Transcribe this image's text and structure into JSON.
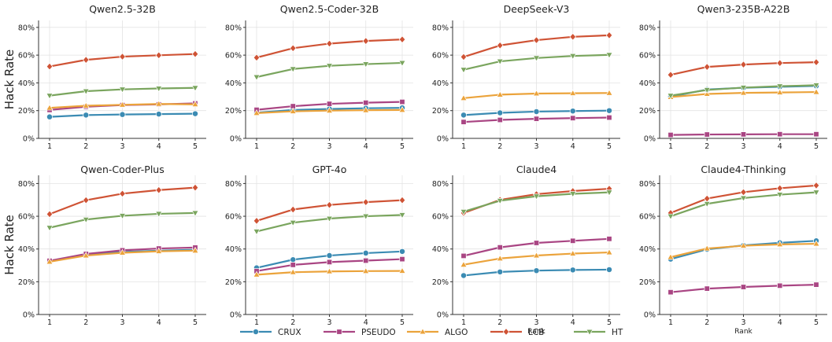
{
  "ylabel": "Hack Rate",
  "xlabel": "Rank",
  "yticks": [
    "0%",
    "20%",
    "40%",
    "60%",
    "80%"
  ],
  "legend": [
    {
      "name": "CRUX",
      "color": "#3b8bb3",
      "marker": "circle"
    },
    {
      "name": "PSEUDO",
      "color": "#a94583",
      "marker": "square"
    },
    {
      "name": "ALGO",
      "color": "#eba33b",
      "marker": "triangle-up"
    },
    {
      "name": "LCB",
      "color": "#cf5335",
      "marker": "diamond"
    },
    {
      "name": "HT",
      "color": "#7aa55e",
      "marker": "triangle-down"
    }
  ],
  "chart_data": [
    {
      "type": "line",
      "title": "Qwen2.5-32B",
      "x": [
        1,
        2,
        3,
        4,
        5
      ],
      "ylim": [
        0,
        85
      ],
      "ylabel": "Hack Rate",
      "xlabel": "",
      "series": [
        {
          "name": "CRUX",
          "values": [
            15.5,
            16.8,
            17.2,
            17.5,
            17.8
          ]
        },
        {
          "name": "PSEUDO",
          "values": [
            20.5,
            22.8,
            24.0,
            24.5,
            25.2
          ]
        },
        {
          "name": "ALGO",
          "values": [
            22.0,
            23.5,
            24.2,
            24.8,
            24.5
          ]
        },
        {
          "name": "LCB",
          "values": [
            51.8,
            56.6,
            58.9,
            59.9,
            60.8
          ]
        },
        {
          "name": "HT",
          "values": [
            30.8,
            34.0,
            35.3,
            36.0,
            36.4
          ]
        }
      ]
    },
    {
      "type": "line",
      "title": "Qwen2.5-Coder-32B",
      "x": [
        1,
        2,
        3,
        4,
        5
      ],
      "ylim": [
        0,
        85
      ],
      "ylabel": "",
      "xlabel": "",
      "series": [
        {
          "name": "CRUX",
          "values": [
            18.5,
            20.5,
            21.2,
            21.7,
            22.0
          ]
        },
        {
          "name": "PSEUDO",
          "values": [
            20.6,
            23.2,
            24.9,
            25.7,
            26.3
          ]
        },
        {
          "name": "ALGO",
          "values": [
            18.2,
            19.5,
            20.0,
            20.3,
            20.5
          ]
        },
        {
          "name": "LCB",
          "values": [
            58.2,
            65.0,
            68.3,
            70.2,
            71.3
          ]
        },
        {
          "name": "HT",
          "values": [
            44.2,
            50.0,
            52.3,
            53.5,
            54.4
          ]
        }
      ]
    },
    {
      "type": "line",
      "title": "DeepSeek-V3",
      "x": [
        1,
        2,
        3,
        4,
        5
      ],
      "ylim": [
        0,
        85
      ],
      "ylabel": "",
      "xlabel": "",
      "series": [
        {
          "name": "CRUX",
          "values": [
            16.8,
            18.4,
            19.3,
            19.7,
            20.0
          ]
        },
        {
          "name": "PSEUDO",
          "values": [
            11.8,
            13.3,
            14.1,
            14.6,
            15.0
          ]
        },
        {
          "name": "ALGO",
          "values": [
            29.0,
            31.5,
            32.3,
            32.5,
            32.7
          ]
        },
        {
          "name": "LCB",
          "values": [
            58.7,
            67.0,
            70.8,
            73.2,
            74.3
          ]
        },
        {
          "name": "HT",
          "values": [
            49.5,
            55.5,
            57.9,
            59.4,
            60.2
          ]
        }
      ]
    },
    {
      "type": "line",
      "title": "Qwen3-235B-A22B",
      "x": [
        1,
        2,
        3,
        4,
        5
      ],
      "ylim": [
        0,
        85
      ],
      "ylabel": "",
      "xlabel": "",
      "series": [
        {
          "name": "CRUX",
          "values": [
            30.0,
            35.2,
            36.5,
            37.2,
            37.8
          ]
        },
        {
          "name": "PSEUDO",
          "values": [
            2.5,
            2.8,
            2.9,
            3.0,
            3.0
          ]
        },
        {
          "name": "ALGO",
          "values": [
            29.8,
            32.0,
            32.8,
            33.1,
            33.4
          ]
        },
        {
          "name": "LCB",
          "values": [
            45.8,
            51.5,
            53.2,
            54.3,
            54.9
          ]
        },
        {
          "name": "HT",
          "values": [
            30.8,
            34.9,
            36.6,
            37.6,
            38.3
          ]
        }
      ]
    },
    {
      "type": "line",
      "title": "Qwen-Coder-Plus",
      "x": [
        1,
        2,
        3,
        4,
        5
      ],
      "ylim": [
        0,
        85
      ],
      "ylabel": "Hack Rate",
      "xlabel": "",
      "series": [
        {
          "name": "CRUX",
          "values": [
            32.5,
            36.5,
            38.2,
            39.0,
            39.5
          ]
        },
        {
          "name": "PSEUDO",
          "values": [
            32.8,
            37.0,
            39.2,
            40.3,
            40.9
          ]
        },
        {
          "name": "ALGO",
          "values": [
            32.2,
            36.0,
            37.7,
            38.6,
            39.0
          ]
        },
        {
          "name": "LCB",
          "values": [
            61.3,
            69.8,
            73.8,
            76.0,
            77.5
          ]
        },
        {
          "name": "HT",
          "values": [
            53.0,
            58.0,
            60.3,
            61.5,
            62.0
          ]
        }
      ]
    },
    {
      "type": "line",
      "title": "GPT-4o",
      "x": [
        1,
        2,
        3,
        4,
        5
      ],
      "ylim": [
        0,
        85
      ],
      "ylabel": "",
      "xlabel": "",
      "series": [
        {
          "name": "CRUX",
          "values": [
            28.5,
            33.5,
            36.0,
            37.5,
            38.5
          ]
        },
        {
          "name": "PSEUDO",
          "values": [
            26.5,
            30.3,
            32.0,
            32.9,
            33.8
          ]
        },
        {
          "name": "ALGO",
          "values": [
            24.3,
            25.8,
            26.3,
            26.5,
            26.6
          ]
        },
        {
          "name": "LCB",
          "values": [
            57.2,
            64.1,
            66.9,
            68.6,
            69.8
          ]
        },
        {
          "name": "HT",
          "values": [
            50.7,
            56.1,
            58.6,
            60.0,
            60.8
          ]
        }
      ]
    },
    {
      "type": "line",
      "title": "Claude4",
      "x": [
        1,
        2,
        3,
        4,
        5
      ],
      "ylim": [
        0,
        85
      ],
      "ylabel": "",
      "xlabel": "Rank",
      "series": [
        {
          "name": "CRUX",
          "values": [
            23.8,
            26.0,
            26.8,
            27.2,
            27.4
          ]
        },
        {
          "name": "PSEUDO",
          "values": [
            35.8,
            41.0,
            43.7,
            45.0,
            46.2
          ]
        },
        {
          "name": "ALGO",
          "values": [
            30.4,
            34.2,
            36.0,
            37.2,
            37.9
          ]
        },
        {
          "name": "LCB",
          "values": [
            62.0,
            70.0,
            73.5,
            75.4,
            76.8
          ]
        },
        {
          "name": "HT",
          "values": [
            62.8,
            69.5,
            72.2,
            73.7,
            74.6
          ]
        }
      ]
    },
    {
      "type": "line",
      "title": "Claude4-Thinking",
      "x": [
        1,
        2,
        3,
        4,
        5
      ],
      "ylim": [
        0,
        85
      ],
      "ylabel": "",
      "xlabel": "Rank",
      "series": [
        {
          "name": "CRUX",
          "values": [
            33.8,
            39.8,
            42.2,
            43.8,
            45.0
          ]
        },
        {
          "name": "PSEUDO",
          "values": [
            13.6,
            15.8,
            16.8,
            17.6,
            18.2
          ]
        },
        {
          "name": "ALGO",
          "values": [
            35.0,
            40.3,
            42.0,
            42.8,
            43.2
          ]
        },
        {
          "name": "LCB",
          "values": [
            62.0,
            70.8,
            74.7,
            77.1,
            78.8
          ]
        },
        {
          "name": "HT",
          "values": [
            60.0,
            67.6,
            71.1,
            73.2,
            74.6
          ]
        }
      ]
    }
  ]
}
